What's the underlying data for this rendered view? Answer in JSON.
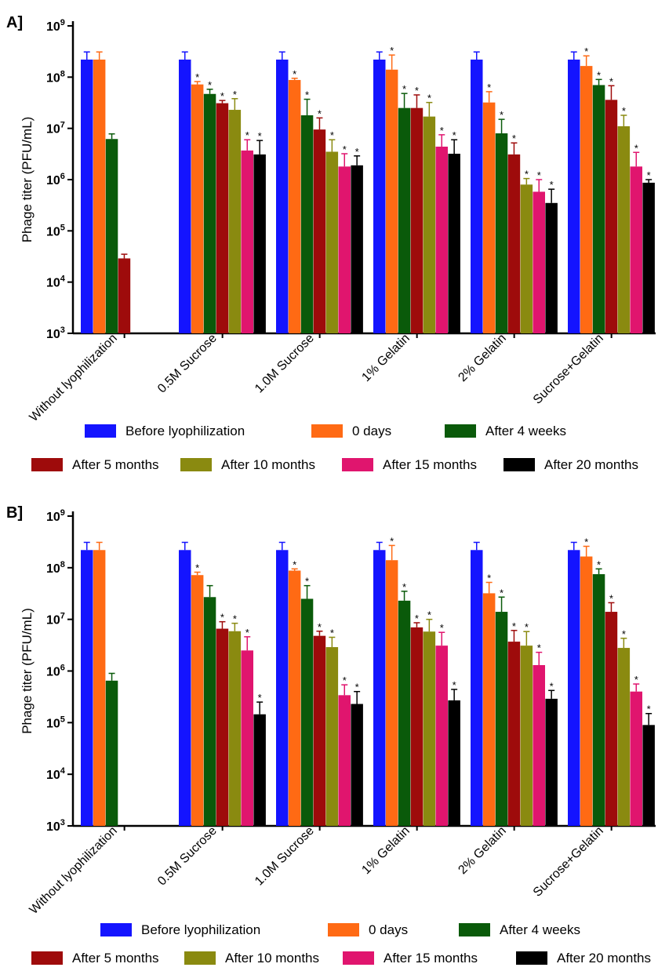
{
  "colors": {
    "Before lyophilization": "#1414ff",
    "0 days": "#ff6a14",
    "After 4 weeks": "#0a5a0a",
    "After 5 months": "#9e0b0b",
    "After 10 months": "#8a8a10",
    "After 15 months": "#e0156e",
    "After 20 months": "#000000"
  },
  "chart_data": [
    {
      "panel_label": "A]",
      "type": "bar",
      "scale": "log",
      "ylabel": "Phage titer (PFU/mL)",
      "ylim": [
        1000,
        1000000000
      ],
      "y_ticks": [
        1000,
        10000,
        100000,
        1000000,
        10000000,
        100000000,
        1000000000
      ],
      "y_tick_labels": [
        {
          "base": "10",
          "exp": "3"
        },
        {
          "base": "10",
          "exp": "4"
        },
        {
          "base": "10",
          "exp": "5"
        },
        {
          "base": "10",
          "exp": "6"
        },
        {
          "base": "10",
          "exp": "7"
        },
        {
          "base": "10",
          "exp": "8"
        },
        {
          "base": "10",
          "exp": "9"
        }
      ],
      "categories": [
        "Without lyophilization",
        "0.5M Sucrose",
        "1.0M Sucrose",
        "1% Gelatin",
        "2% Gelatin",
        "Sucrose+Gelatin"
      ],
      "significance_marker": "*",
      "series": [
        {
          "name": "Before lyophilization",
          "values": [
            220000000,
            220000000,
            220000000,
            220000000,
            220000000,
            220000000
          ],
          "errors_high": [
            310000000,
            310000000,
            310000000,
            310000000,
            310000000,
            310000000
          ],
          "significant": [
            false,
            false,
            false,
            false,
            false,
            false
          ]
        },
        {
          "name": "0 days",
          "values": [
            220000000,
            72000000,
            88000000,
            140000000,
            32000000,
            165000000
          ],
          "errors_high": [
            310000000,
            82000000,
            95000000,
            270000000,
            52000000,
            260000000
          ],
          "significant": [
            false,
            true,
            true,
            true,
            true,
            true
          ]
        },
        {
          "name": "After 4 weeks",
          "values": [
            6200000,
            47000000,
            18000000,
            25000000,
            8000000,
            70000000
          ],
          "errors_high": [
            7800000,
            58000000,
            37000000,
            48000000,
            15000000,
            90000000
          ],
          "significant": [
            false,
            true,
            true,
            true,
            true,
            true
          ]
        },
        {
          "name": "After 5 months",
          "values": [
            29000,
            31000000,
            9500000,
            25000000,
            3100000,
            36000000
          ],
          "errors_high": [
            35000,
            35000000,
            16000000,
            45000000,
            5200000,
            68000000
          ],
          "significant": [
            false,
            true,
            true,
            true,
            true,
            true
          ]
        },
        {
          "name": "After 10 months",
          "values": [
            null,
            23000000,
            3500000,
            17000000,
            800000,
            11000000
          ],
          "errors_high": [
            null,
            38000000,
            6000000,
            32000000,
            1050000,
            18000000
          ],
          "significant": [
            false,
            true,
            true,
            true,
            true,
            true
          ]
        },
        {
          "name": "After 15 months",
          "values": [
            null,
            3700000,
            1800000,
            4400000,
            580000,
            1800000
          ],
          "errors_high": [
            null,
            6000000,
            3200000,
            7500000,
            1000000,
            3400000
          ],
          "significant": [
            false,
            true,
            true,
            true,
            true,
            true
          ]
        },
        {
          "name": "After 20 months",
          "values": [
            null,
            3100000,
            1900000,
            3200000,
            350000,
            870000
          ],
          "errors_high": [
            null,
            5800000,
            2900000,
            6000000,
            650000,
            1000000
          ],
          "significant": [
            false,
            true,
            true,
            true,
            true,
            true
          ]
        }
      ]
    },
    {
      "panel_label": "B]",
      "type": "bar",
      "scale": "log",
      "ylabel": "Phage titer (PFU/mL)",
      "ylim": [
        1000,
        1000000000
      ],
      "y_ticks": [
        1000,
        10000,
        100000,
        1000000,
        10000000,
        100000000,
        1000000000
      ],
      "y_tick_labels": [
        {
          "base": "10",
          "exp": "3"
        },
        {
          "base": "10",
          "exp": "4"
        },
        {
          "base": "10",
          "exp": "5"
        },
        {
          "base": "10",
          "exp": "6"
        },
        {
          "base": "10",
          "exp": "7"
        },
        {
          "base": "10",
          "exp": "8"
        },
        {
          "base": "10",
          "exp": "9"
        }
      ],
      "categories": [
        "Without lyophilization",
        "0.5M Sucrose",
        "1.0M Sucrose",
        "1% Gelatin",
        "2% Gelatin",
        "Sucrose+Gelatin"
      ],
      "significance_marker": "*",
      "series": [
        {
          "name": "Before lyophilization",
          "values": [
            220000000,
            220000000,
            220000000,
            220000000,
            220000000,
            220000000
          ],
          "errors_high": [
            310000000,
            310000000,
            310000000,
            310000000,
            310000000,
            310000000
          ],
          "significant": [
            false,
            false,
            false,
            false,
            false,
            false
          ]
        },
        {
          "name": "0 days",
          "values": [
            220000000,
            72000000,
            88000000,
            140000000,
            32000000,
            165000000
          ],
          "errors_high": [
            310000000,
            82000000,
            95000000,
            270000000,
            52000000,
            260000000
          ],
          "significant": [
            false,
            true,
            true,
            true,
            true,
            true
          ]
        },
        {
          "name": "After 4 weeks",
          "values": [
            650000,
            27000000,
            25000000,
            23000000,
            14000000,
            75000000
          ],
          "errors_high": [
            900000,
            45000000,
            45000000,
            35000000,
            27000000,
            95000000
          ],
          "significant": [
            false,
            false,
            true,
            true,
            true,
            true
          ]
        },
        {
          "name": "After 5 months",
          "values": [
            null,
            6600000,
            4800000,
            7000000,
            3700000,
            14000000
          ],
          "errors_high": [
            null,
            9000000,
            5900000,
            8600000,
            6100000,
            21000000
          ],
          "significant": [
            false,
            true,
            true,
            true,
            true,
            true
          ]
        },
        {
          "name": "After 10 months",
          "values": [
            null,
            5900000,
            2900000,
            5800000,
            3100000,
            2800000
          ],
          "errors_high": [
            null,
            8400000,
            4500000,
            10000000,
            5800000,
            4300000
          ],
          "significant": [
            false,
            true,
            true,
            true,
            true,
            true
          ]
        },
        {
          "name": "After 15 months",
          "values": [
            null,
            2500000,
            340000,
            3100000,
            1300000,
            400000
          ],
          "errors_high": [
            null,
            4600000,
            540000,
            5600000,
            2300000,
            560000
          ],
          "significant": [
            false,
            true,
            true,
            true,
            true,
            true
          ]
        },
        {
          "name": "After 20 months",
          "values": [
            null,
            145000,
            230000,
            270000,
            290000,
            90000
          ],
          "errors_high": [
            null,
            250000,
            400000,
            440000,
            420000,
            150000
          ],
          "significant": [
            false,
            true,
            true,
            true,
            true,
            true
          ]
        }
      ]
    }
  ]
}
